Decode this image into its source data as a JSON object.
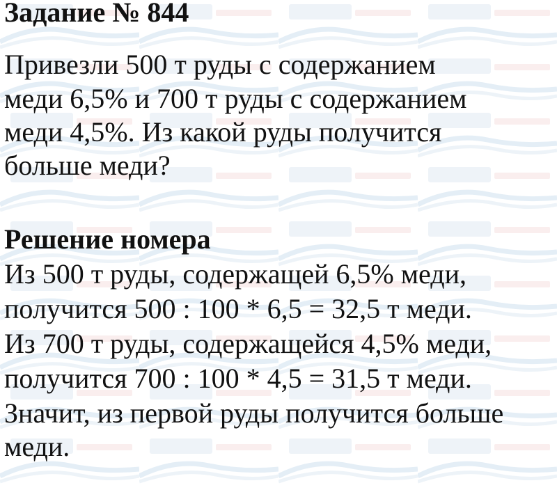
{
  "watermark": {
    "main": "Илюха",
    "sub": "-решает.РФ",
    "color": "#dde6f0",
    "sub_color": "#f6dcdc"
  },
  "title": "Задание № 844",
  "problem": [
    "Привезли 500 т руды с содержанием",
    "меди 6,5% и 700 т руды с содержанием",
    "меди 4,5%. Из какой руды получится",
    "больше меди?"
  ],
  "solution_heading": "Решение номера",
  "solution": [
    "Из 500 т руды, содержащей 6,5% меди,",
    "получится 500 : 100 * 6,5 = 32,5 т меди.",
    "Из 700 т руды, содержащейся 4,5% меди,",
    "получится 700 : 100 * 4,5 = 31,5 т меди.",
    "Значит, из первой руды получится больше",
    "меди."
  ]
}
